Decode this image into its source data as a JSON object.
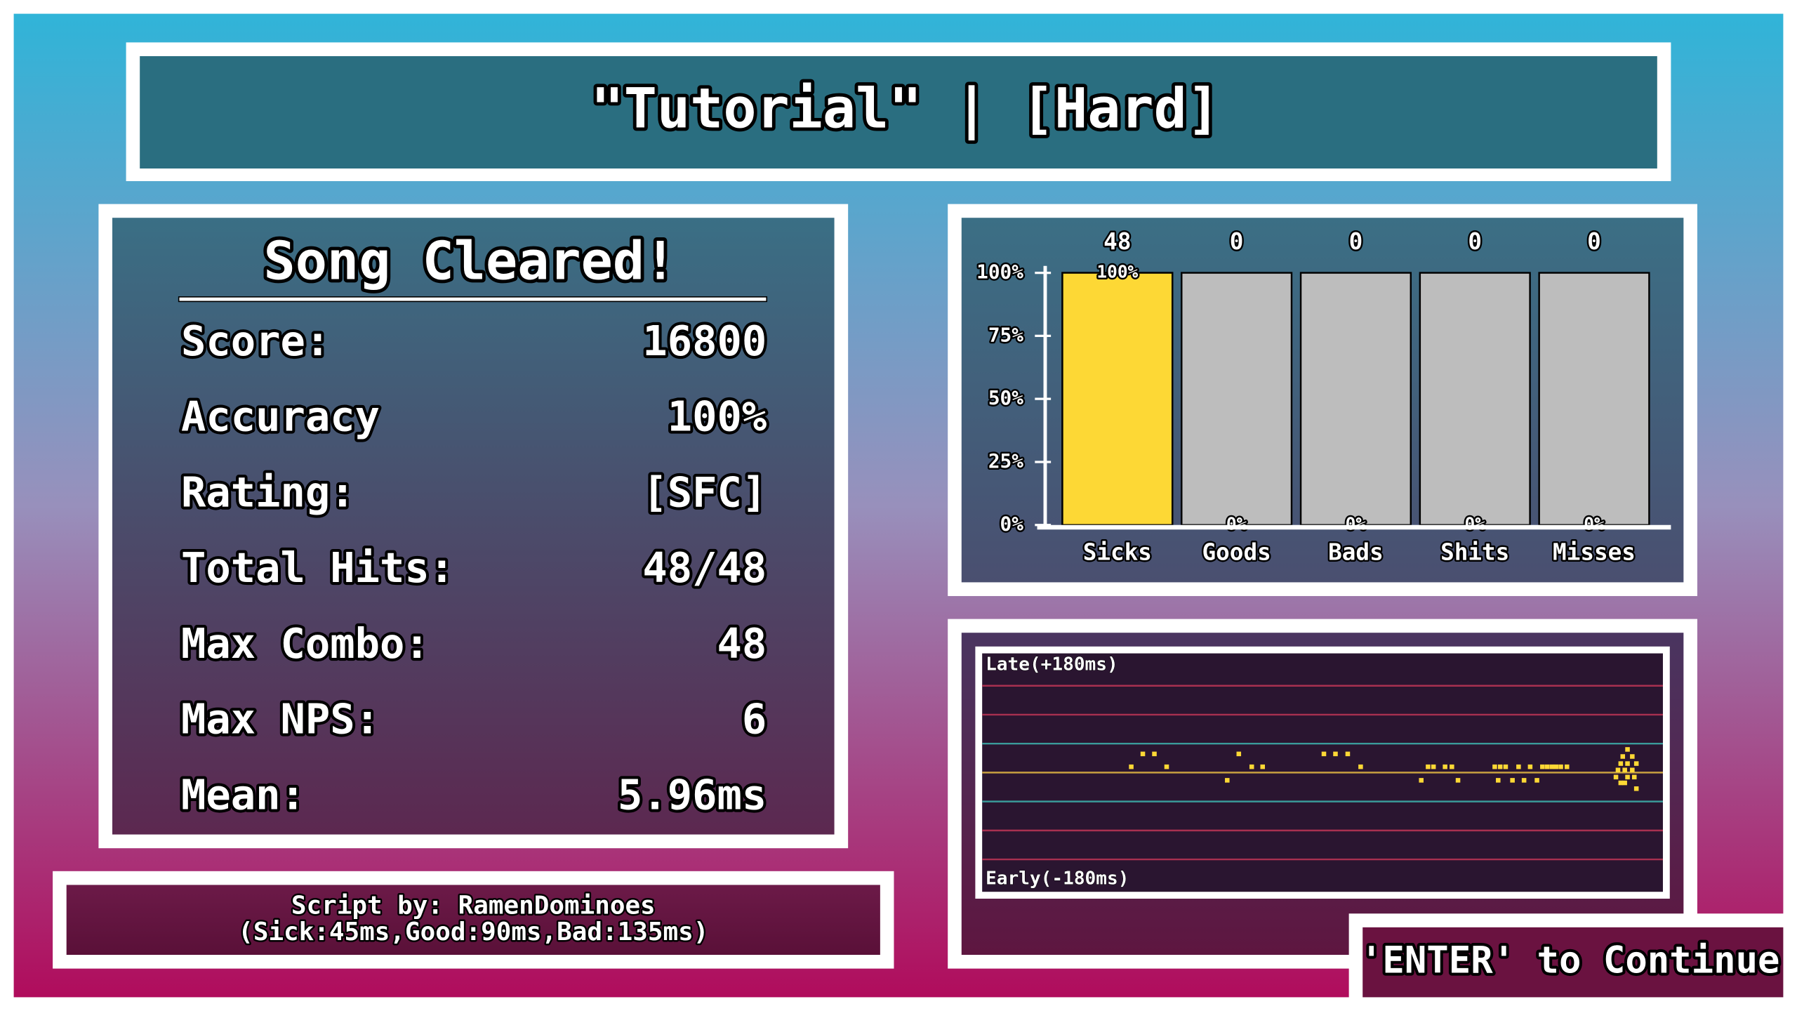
{
  "header": {
    "title": "\"Tutorial\" | [Hard]"
  },
  "results": {
    "heading": "Song Cleared!",
    "stats": [
      {
        "label": "Score:",
        "value": 16800
      },
      {
        "label": "Accuracy",
        "value": "100%"
      },
      {
        "label": "Rating:",
        "value": "[SFC]"
      },
      {
        "label": "Total Hits:",
        "value": "48/48"
      },
      {
        "label": "Max Combo:",
        "value": 48
      },
      {
        "label": "Max NPS:",
        "value": 6
      },
      {
        "label": "Mean:",
        "value": "5.96ms"
      }
    ]
  },
  "footer": {
    "lines": [
      "Script by: RamenDominoes",
      "(Sick:45ms,Good:90ms,Bad:135ms)"
    ]
  },
  "prompt": "'ENTER' to Continue",
  "chart_data": [
    {
      "type": "bar",
      "categories": [
        "Sicks",
        "Goods",
        "Bads",
        "Shits",
        "Misses"
      ],
      "values": [
        100,
        0,
        0,
        0,
        0
      ],
      "value_labels": [
        "100%",
        "0%",
        "0%",
        "0%",
        "0%"
      ],
      "counts": [
        48,
        0,
        0,
        0,
        0
      ],
      "color": "#fdd835",
      "track_color": "#bdbdbd",
      "ylim": [
        0,
        100
      ],
      "yticks": [
        {
          "value": 0,
          "label": "0%"
        },
        {
          "value": 25,
          "label": "25%"
        },
        {
          "value": 50,
          "label": "50%"
        },
        {
          "value": 75,
          "label": "75%"
        },
        {
          "value": 100,
          "label": "100%"
        }
      ]
    },
    {
      "type": "scatter",
      "top_label": "Late(+180ms)",
      "bottom_label": "Early(-180ms)",
      "color": "#fdd835",
      "xlim": [
        0,
        100
      ],
      "ylim": [
        -180,
        180
      ],
      "yticks": [
        -135,
        -90,
        -45,
        0,
        45,
        90,
        135
      ],
      "grid_colors": [
        "#a83050",
        "#a83050",
        "#3a9a9a",
        "#c8a040",
        "#3a9a9a",
        "#a83050",
        "#a83050"
      ],
      "x": [
        21.9,
        23.6,
        25.3,
        27.1,
        36.0,
        37.7,
        39.6,
        41.2,
        50.2,
        51.9,
        53.7,
        55.6,
        64.5,
        65.5,
        66.3,
        68.0,
        69.0,
        69.9,
        75.3,
        75.8,
        76.1,
        76.9,
        77.9,
        78.8,
        79.6,
        80.5,
        81.5,
        82.3,
        83.0,
        83.7,
        84.3,
        85.0,
        85.9,
        93.1,
        93.4,
        93.8,
        93.8,
        94.1,
        94.4,
        94.4,
        94.8,
        94.8,
        94.8,
        95.5,
        95.5,
        95.8,
        96.1,
        96.1
      ],
      "y": [
        9,
        29,
        29,
        9,
        -12,
        29,
        9,
        9,
        29,
        29,
        29,
        9,
        -12,
        9,
        9,
        9,
        9,
        -12,
        9,
        -12,
        9,
        9,
        -12,
        9,
        -12,
        9,
        -12,
        9,
        9,
        9,
        9,
        9,
        9,
        -7,
        4,
        14,
        -16,
        25,
        4,
        -16,
        36,
        14,
        -7,
        25,
        4,
        -7,
        14,
        -25
      ]
    }
  ]
}
